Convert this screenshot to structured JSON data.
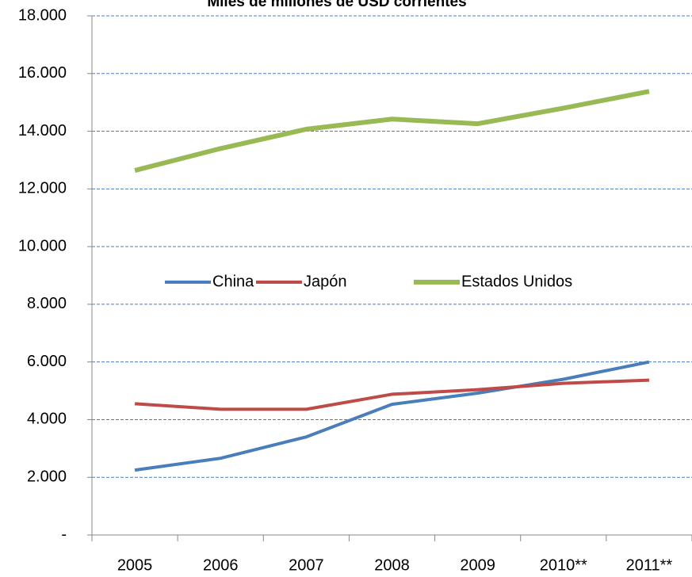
{
  "chart_data": {
    "type": "line",
    "title": "Miles de millones de USD corrientes",
    "categories": [
      "2005",
      "2006",
      "2007",
      "2008",
      "2009",
      "2010**",
      "2011**"
    ],
    "series": [
      {
        "name": "China",
        "color": "#4a7ebb",
        "values": [
          2250,
          2660,
          3400,
          4530,
          4920,
          5400,
          6000
        ]
      },
      {
        "name": "Japón",
        "color": "#be4b48",
        "values": [
          4550,
          4360,
          4360,
          4880,
          5040,
          5260,
          5370
        ]
      },
      {
        "name": "Estados Unidos",
        "color": "#98b954",
        "values": [
          12640,
          13400,
          14070,
          14420,
          14260,
          14800,
          15380
        ]
      }
    ],
    "ylim": [
      0,
      18000
    ],
    "yticks": [
      {
        "value": 0,
        "label": "-"
      },
      {
        "value": 2000,
        "label": "2.000"
      },
      {
        "value": 4000,
        "label": "4.000"
      },
      {
        "value": 6000,
        "label": "6.000"
      },
      {
        "value": 8000,
        "label": "8.000"
      },
      {
        "value": 10000,
        "label": "10.000"
      },
      {
        "value": 12000,
        "label": "12.000"
      },
      {
        "value": 14000,
        "label": "14.000"
      },
      {
        "value": 16000,
        "label": "16.000"
      },
      {
        "value": 18000,
        "label": "18.000"
      }
    ],
    "grid": true,
    "legend": "center"
  }
}
